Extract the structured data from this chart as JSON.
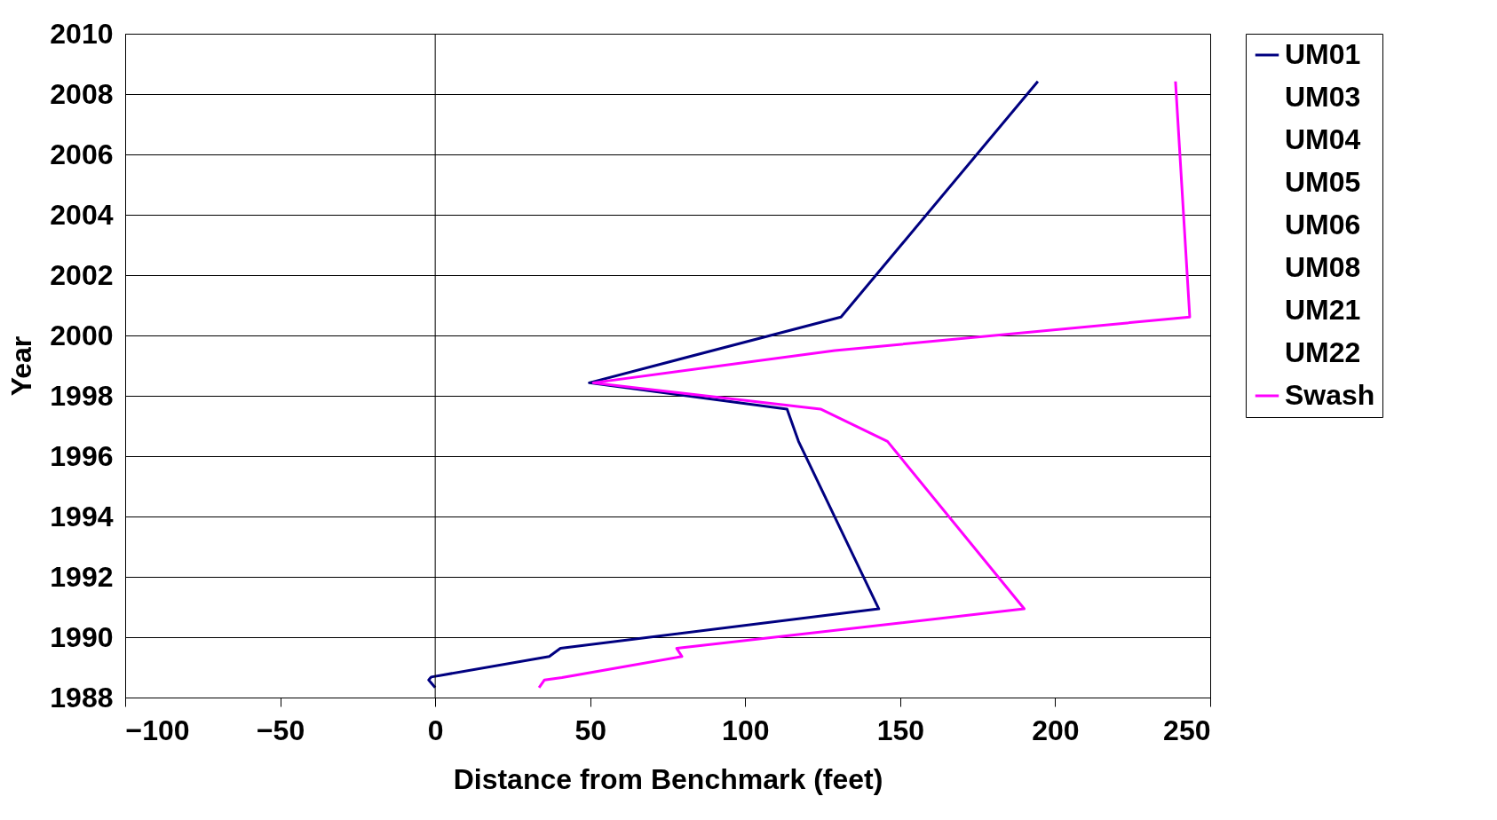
{
  "chart_data": {
    "type": "line",
    "xlabel": "Distance from Benchmark (feet)",
    "ylabel": "Year",
    "xlim": [
      -100,
      250
    ],
    "xticks": [
      -100,
      -50,
      0,
      50,
      100,
      150,
      200,
      250
    ],
    "ylim": [
      1988,
      2010
    ],
    "yticks": [
      1988,
      1990,
      1992,
      1994,
      1996,
      1998,
      2000,
      2002,
      2004,
      2006,
      2008,
      2010
    ],
    "grid": "y",
    "legend": "right",
    "marker": "none",
    "ref_lines": [
      {
        "axis": "x",
        "value": 0,
        "color": "#000000"
      }
    ],
    "series": [
      {
        "name": "UM01",
        "color": "#000080",
        "x": [
          194.4,
          130.9,
          49.7,
          113.5,
          117.2,
          143.1,
          40.4,
          36.8,
          -1.3,
          -2.1,
          0
        ],
        "values": [
          2008.42,
          2000.61,
          1998.43,
          1997.56,
          1996.49,
          1990.94,
          1989.63,
          1989.36,
          1988.68,
          1988.58,
          1988.33
        ]
      },
      {
        "name": "UM03"
      },
      {
        "name": "UM04"
      },
      {
        "name": "UM05"
      },
      {
        "name": "UM06"
      },
      {
        "name": "UM08"
      },
      {
        "name": "UM21"
      },
      {
        "name": "UM22"
      },
      {
        "name": "Swash",
        "color": "#ff00ff",
        "x": [
          238.8,
          243.4,
          128.9,
          51,
          124.3,
          145.9,
          190.0,
          77.9,
          79.6,
          40.9,
          35.2,
          33.5
        ],
        "values": [
          2008.42,
          2000.61,
          1999.5,
          1998.43,
          1997.56,
          1996.49,
          1990.94,
          1989.63,
          1989.36,
          1988.66,
          1988.58,
          1988.33
        ]
      }
    ]
  }
}
